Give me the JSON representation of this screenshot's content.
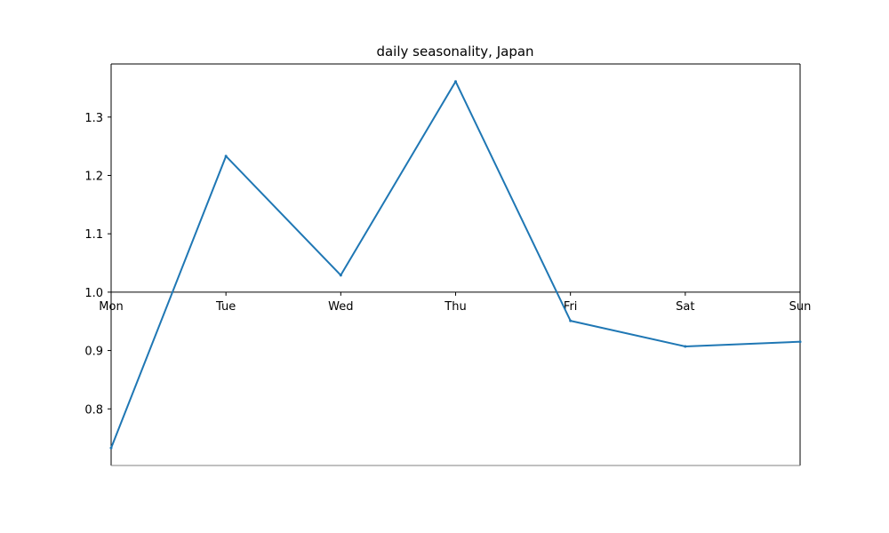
{
  "chart_data": {
    "type": "line",
    "title": "daily seasonality, Japan",
    "xlabel": "",
    "ylabel": "",
    "categories": [
      "Mon",
      "Tue",
      "Wed",
      "Thu",
      "Fri",
      "Sat",
      "Sun"
    ],
    "series": [
      {
        "values": [
          0.733,
          1.233,
          1.029,
          1.361,
          0.951,
          0.907,
          0.915
        ],
        "color": "#1f77b4"
      }
    ],
    "ylim": [
      0.703,
      1.391
    ],
    "yticks": [
      0.8,
      0.9,
      1.0,
      1.1,
      1.2,
      1.3
    ],
    "ytick_labels": [
      "0.8",
      "0.9",
      "1.0",
      "1.1",
      "1.2",
      "1.3"
    ],
    "x_axis_at": 1.0,
    "grid": false,
    "legend": "none"
  }
}
